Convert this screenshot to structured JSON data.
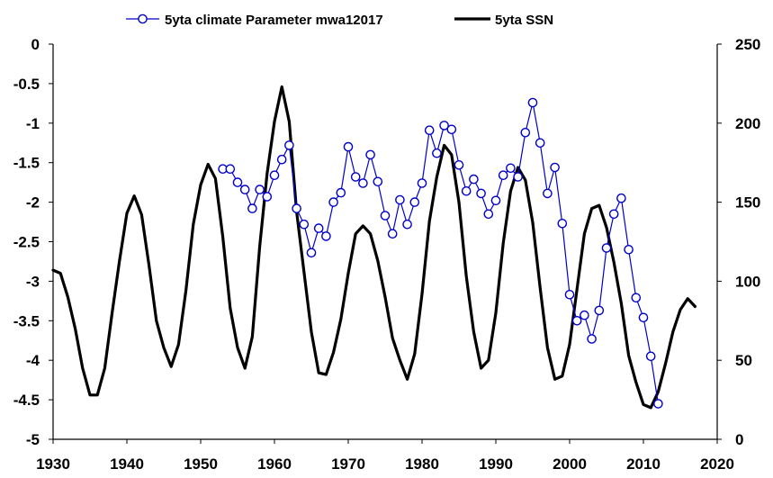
{
  "chart_data": {
    "type": "line",
    "title": "",
    "xlabel": "",
    "ylabel": "",
    "y2label": "",
    "xlim": [
      1930,
      2020
    ],
    "xticks": [
      "1930",
      "1940",
      "1950",
      "1960",
      "1970",
      "1980",
      "1990",
      "2000",
      "2010",
      "2020"
    ],
    "ylim_left": [
      -5,
      0
    ],
    "yticks_left": [
      "0",
      "-0.5",
      "-1",
      "-1.5",
      "-2",
      "-2.5",
      "-3",
      "-3.5",
      "-4",
      "-4.5",
      "-5"
    ],
    "ylim_right": [
      0,
      250
    ],
    "yticks_right": [
      "250",
      "200",
      "150",
      "100",
      "50",
      "0"
    ],
    "grid": false,
    "legend_position": "top",
    "series": [
      {
        "name": "5yta climate Parameter mwa12017",
        "axis": "left",
        "color": "#0000cc",
        "marker": "open-circle",
        "x": [
          1953,
          1954,
          1955,
          1956,
          1957,
          1958,
          1959,
          1960,
          1961,
          1962,
          1963,
          1964,
          1965,
          1966,
          1967,
          1968,
          1969,
          1970,
          1971,
          1972,
          1973,
          1974,
          1975,
          1976,
          1977,
          1978,
          1979,
          1980,
          1981,
          1982,
          1983,
          1984,
          1985,
          1986,
          1987,
          1988,
          1989,
          1990,
          1991,
          1992,
          1993,
          1994,
          1995,
          1996,
          1997,
          1998,
          1999,
          2000,
          2001,
          2002,
          2003,
          2004,
          2005,
          2006,
          2007,
          2008,
          2009,
          2010,
          2011,
          2012
        ],
        "values": [
          -1.58,
          -1.58,
          -1.75,
          -1.84,
          -2.08,
          -1.84,
          -1.93,
          -1.66,
          -1.46,
          -1.28,
          -2.08,
          -2.28,
          -2.64,
          -2.33,
          -2.43,
          -2.0,
          -1.88,
          -1.3,
          -1.68,
          -1.76,
          -1.4,
          -1.74,
          -2.17,
          -2.4,
          -1.97,
          -2.28,
          -2.0,
          -1.76,
          -1.09,
          -1.38,
          -1.03,
          -1.08,
          -1.53,
          -1.86,
          -1.71,
          -1.89,
          -2.15,
          -1.98,
          -1.66,
          -1.57,
          -1.68,
          -1.12,
          -0.74,
          -1.25,
          -1.89,
          -1.56,
          -2.27,
          -3.17,
          -3.5,
          -3.43,
          -3.73,
          -3.37,
          -2.58,
          -2.15,
          -1.95,
          -2.6,
          -3.21,
          -3.46,
          -3.95,
          -4.55
        ]
      },
      {
        "name": "5yta SSN",
        "axis": "right",
        "color": "#000000",
        "marker": "none",
        "x": [
          1930,
          1931,
          1932,
          1933,
          1934,
          1935,
          1936,
          1937,
          1938,
          1939,
          1940,
          1941,
          1942,
          1943,
          1944,
          1945,
          1946,
          1947,
          1948,
          1949,
          1950,
          1951,
          1952,
          1953,
          1954,
          1955,
          1956,
          1957,
          1958,
          1959,
          1960,
          1961,
          1962,
          1963,
          1964,
          1965,
          1966,
          1967,
          1968,
          1969,
          1970,
          1971,
          1972,
          1973,
          1974,
          1975,
          1976,
          1977,
          1978,
          1979,
          1980,
          1981,
          1982,
          1983,
          1984,
          1985,
          1986,
          1987,
          1988,
          1989,
          1990,
          1991,
          1992,
          1993,
          1994,
          1995,
          1996,
          1997,
          1998,
          1999,
          2000,
          2001,
          2002,
          2003,
          2004,
          2005,
          2006,
          2007,
          2008,
          2009,
          2010,
          2011,
          2012,
          2013,
          2014,
          2015,
          2016,
          2017
        ],
        "values": [
          107,
          105,
          90,
          70,
          45,
          28,
          28,
          45,
          80,
          113,
          143,
          154,
          142,
          110,
          75,
          58,
          46,
          60,
          94,
          136,
          161,
          174,
          165,
          128,
          83,
          58,
          45,
          65,
          122,
          168,
          201,
          223,
          201,
          144,
          106,
          68,
          42,
          41,
          55,
          76,
          105,
          130,
          135,
          130,
          113,
          90,
          64,
          50,
          38,
          54,
          92,
          138,
          166,
          186,
          180,
          150,
          103,
          68,
          45,
          50,
          80,
          124,
          157,
          172,
          164,
          137,
          96,
          58,
          38,
          40,
          60,
          95,
          130,
          146,
          148,
          134,
          112,
          86,
          53,
          36,
          22,
          20,
          30,
          48,
          68,
          82,
          89,
          84
        ]
      }
    ]
  }
}
